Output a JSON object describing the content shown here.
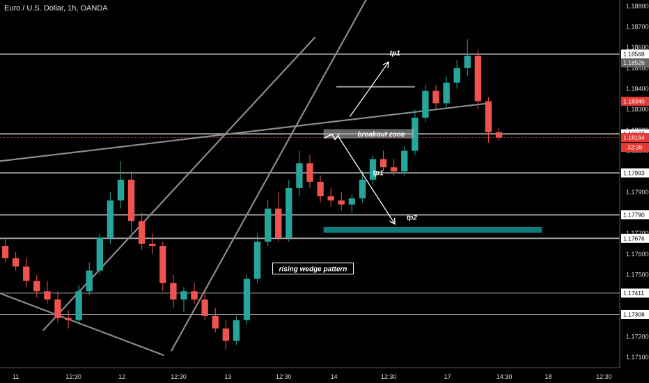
{
  "header": {
    "title": "Euro / U.S. Dollar, 1h, OANDA"
  },
  "colors": {
    "background": "#000000",
    "up": "#26a69a",
    "down": "#ef5350",
    "level_line": "#a0a0a0",
    "wedge_line": "#8c8c8c",
    "target_box": "#0e7c7b",
    "price_badge": "#e53935",
    "axis_text": "#d8d8d8"
  },
  "chart_data": {
    "type": "candlestick",
    "ylim": [
      1.1705,
      1.1883
    ],
    "xlim": [
      0,
      59
    ],
    "x_ticks": [
      {
        "x": 1.5,
        "label": "11"
      },
      {
        "x": 7.0,
        "label": "12:30"
      },
      {
        "x": 11.6,
        "label": "12"
      },
      {
        "x": 17.0,
        "label": "12:30"
      },
      {
        "x": 21.7,
        "label": "13"
      },
      {
        "x": 27.0,
        "label": "12:30"
      },
      {
        "x": 31.8,
        "label": "14"
      },
      {
        "x": 37.0,
        "label": "12:30"
      },
      {
        "x": 42.6,
        "label": "17"
      },
      {
        "x": 48.0,
        "label": "14:30"
      },
      {
        "x": 52.2,
        "label": "18"
      },
      {
        "x": 57.5,
        "label": "12:30"
      }
    ],
    "y_ticks": [
      1.188,
      1.187,
      1.186,
      1.185,
      1.184,
      1.183,
      1.182,
      1.181,
      1.18,
      1.179,
      1.178,
      1.177,
      1.176,
      1.175,
      1.174,
      1.173,
      1.172,
      1.171
    ],
    "price_labels": [
      {
        "value": 1.18568,
        "style": "white"
      },
      {
        "value": 1.18526,
        "style": "gray"
      },
      {
        "value": 1.1834,
        "style": "red"
      },
      {
        "value": 1.18182,
        "style": "white"
      },
      {
        "value": 1.18164,
        "style": "red"
      },
      {
        "value": 1.17993,
        "style": "white"
      },
      {
        "value": 1.1779,
        "style": "white"
      },
      {
        "value": 1.17676,
        "style": "white"
      },
      {
        "value": 1.17411,
        "style": "white"
      },
      {
        "value": 1.17308,
        "style": "white"
      }
    ],
    "countdown": "32:28",
    "horizontal_levels": [
      {
        "y": 1.18568,
        "x1": 0,
        "x2": 59,
        "w": 2
      },
      {
        "y": 1.18182,
        "x1": 0,
        "x2": 59,
        "w": 2
      },
      {
        "y": 1.17993,
        "x1": 0,
        "x2": 59,
        "w": 2
      },
      {
        "y": 1.1779,
        "x1": 0,
        "x2": 59,
        "w": 2
      },
      {
        "y": 1.17676,
        "x1": 0,
        "x2": 59,
        "w": 2
      },
      {
        "y": 1.17411,
        "x1": 0,
        "x2": 59,
        "w": 1
      },
      {
        "y": 1.17308,
        "x1": 0,
        "x2": 59,
        "w": 1
      },
      {
        "y": 1.1841,
        "x1": 32.0,
        "x2": 39.5,
        "w": 2
      }
    ],
    "current_price_line": 1.18164,
    "trend_lines": [
      {
        "x1": 0,
        "y1": 1.1805,
        "x2": 46.5,
        "y2": 1.1833
      },
      {
        "x1": 0,
        "y1": 1.1741,
        "x2": 15.6,
        "y2": 1.1711
      },
      {
        "x1": 4.1,
        "y1": 1.1723,
        "x2": 30.0,
        "y2": 1.1865
      },
      {
        "x1": 16.3,
        "y1": 1.1713,
        "x2": 35.6,
        "y2": 1.189
      }
    ],
    "arrows": [
      {
        "x1": 33.3,
        "y1": 1.18265,
        "x2": 37.0,
        "y2": 1.1853
      },
      {
        "x1": 32.2,
        "y1": 1.1817,
        "x2": 37.6,
        "y2": 1.17745
      }
    ],
    "zigzag": [
      [
        30.9,
        1.18162
      ],
      [
        31.6,
        1.1818
      ],
      [
        31.9,
        1.18155
      ],
      [
        32.3,
        1.18182
      ]
    ],
    "boxes": [
      {
        "x1": 30.8,
        "x2": 39.4,
        "y1": 1.1816,
        "y2": 1.18205,
        "kind": "breakout"
      },
      {
        "x1": 30.8,
        "x2": 51.6,
        "y1": 1.17703,
        "y2": 1.17731,
        "kind": "target"
      }
    ],
    "annotations": [
      {
        "text": "tp1",
        "x": 37.6,
        "y": 1.18575,
        "boxed": false
      },
      {
        "text": "breakout zone",
        "x": 36.3,
        "y": 1.18182,
        "boxed": false
      },
      {
        "text": "tp1",
        "x": 36.0,
        "y": 1.17995,
        "boxed": false
      },
      {
        "text": "tp2",
        "x": 39.2,
        "y": 1.1778,
        "boxed": true,
        "boxed_none": true
      },
      {
        "text": "rising wedge pattern",
        "x": 29.8,
        "y": 1.1753,
        "boxed": true
      }
    ],
    "candles": [
      {
        "o": 1.1764,
        "h": 1.1768,
        "l": 1.1756,
        "c": 1.1758
      },
      {
        "o": 1.1758,
        "h": 1.1761,
        "l": 1.1752,
        "c": 1.1754
      },
      {
        "o": 1.1754,
        "h": 1.1758,
        "l": 1.1744,
        "c": 1.1747
      },
      {
        "o": 1.1747,
        "h": 1.175,
        "l": 1.1739,
        "c": 1.1742
      },
      {
        "o": 1.1742,
        "h": 1.1747,
        "l": 1.1736,
        "c": 1.1738
      },
      {
        "o": 1.1738,
        "h": 1.1742,
        "l": 1.1727,
        "c": 1.1729
      },
      {
        "o": 1.1729,
        "h": 1.1733,
        "l": 1.1724,
        "c": 1.1728
      },
      {
        "o": 1.1728,
        "h": 1.1745,
        "l": 1.1726,
        "c": 1.1742
      },
      {
        "o": 1.1742,
        "h": 1.1756,
        "l": 1.174,
        "c": 1.1752
      },
      {
        "o": 1.1752,
        "h": 1.177,
        "l": 1.175,
        "c": 1.1768
      },
      {
        "o": 1.1768,
        "h": 1.179,
        "l": 1.1765,
        "c": 1.1786
      },
      {
        "o": 1.1786,
        "h": 1.1805,
        "l": 1.1782,
        "c": 1.1796
      },
      {
        "o": 1.1796,
        "h": 1.18,
        "l": 1.177,
        "c": 1.1776
      },
      {
        "o": 1.1776,
        "h": 1.178,
        "l": 1.1762,
        "c": 1.1765
      },
      {
        "o": 1.1765,
        "h": 1.177,
        "l": 1.176,
        "c": 1.1764
      },
      {
        "o": 1.1764,
        "h": 1.1766,
        "l": 1.1742,
        "c": 1.1746
      },
      {
        "o": 1.1746,
        "h": 1.175,
        "l": 1.1734,
        "c": 1.1738
      },
      {
        "o": 1.1738,
        "h": 1.1744,
        "l": 1.1732,
        "c": 1.1742
      },
      {
        "o": 1.1742,
        "h": 1.1746,
        "l": 1.1736,
        "c": 1.1738
      },
      {
        "o": 1.1738,
        "h": 1.1742,
        "l": 1.1728,
        "c": 1.173
      },
      {
        "o": 1.173,
        "h": 1.1734,
        "l": 1.1722,
        "c": 1.1724
      },
      {
        "o": 1.1724,
        "h": 1.1728,
        "l": 1.1714,
        "c": 1.1718
      },
      {
        "o": 1.1718,
        "h": 1.173,
        "l": 1.1716,
        "c": 1.1728
      },
      {
        "o": 1.1728,
        "h": 1.175,
        "l": 1.1726,
        "c": 1.1748
      },
      {
        "o": 1.1748,
        "h": 1.177,
        "l": 1.1746,
        "c": 1.1766
      },
      {
        "o": 1.1766,
        "h": 1.1786,
        "l": 1.1764,
        "c": 1.1782
      },
      {
        "o": 1.1782,
        "h": 1.179,
        "l": 1.1766,
        "c": 1.1768
      },
      {
        "o": 1.1768,
        "h": 1.1796,
        "l": 1.1766,
        "c": 1.1792
      },
      {
        "o": 1.1792,
        "h": 1.181,
        "l": 1.1788,
        "c": 1.1804
      },
      {
        "o": 1.1804,
        "h": 1.1808,
        "l": 1.1792,
        "c": 1.1795
      },
      {
        "o": 1.1795,
        "h": 1.1798,
        "l": 1.1785,
        "c": 1.1788
      },
      {
        "o": 1.1788,
        "h": 1.1792,
        "l": 1.1783,
        "c": 1.1786
      },
      {
        "o": 1.1786,
        "h": 1.179,
        "l": 1.1781,
        "c": 1.1784
      },
      {
        "o": 1.1784,
        "h": 1.1789,
        "l": 1.178,
        "c": 1.1787
      },
      {
        "o": 1.1787,
        "h": 1.18,
        "l": 1.1785,
        "c": 1.1796
      },
      {
        "o": 1.1796,
        "h": 1.1808,
        "l": 1.1794,
        "c": 1.1806
      },
      {
        "o": 1.1806,
        "h": 1.181,
        "l": 1.18,
        "c": 1.1802
      },
      {
        "o": 1.1802,
        "h": 1.1806,
        "l": 1.1798,
        "c": 1.18
      },
      {
        "o": 1.18,
        "h": 1.1812,
        "l": 1.1798,
        "c": 1.181
      },
      {
        "o": 1.181,
        "h": 1.183,
        "l": 1.1808,
        "c": 1.1826
      },
      {
        "o": 1.1826,
        "h": 1.1842,
        "l": 1.1824,
        "c": 1.1839
      },
      {
        "o": 1.1839,
        "h": 1.1842,
        "l": 1.183,
        "c": 1.1833
      },
      {
        "o": 1.1833,
        "h": 1.1846,
        "l": 1.1831,
        "c": 1.1843
      },
      {
        "o": 1.1843,
        "h": 1.1854,
        "l": 1.184,
        "c": 1.185
      },
      {
        "o": 1.185,
        "h": 1.1864,
        "l": 1.1846,
        "c": 1.1856
      },
      {
        "o": 1.1856,
        "h": 1.1859,
        "l": 1.183,
        "c": 1.1834
      },
      {
        "o": 1.1834,
        "h": 1.1836,
        "l": 1.1814,
        "c": 1.1819
      },
      {
        "o": 1.1819,
        "h": 1.1821,
        "l": 1.1815,
        "c": 1.18164
      }
    ]
  }
}
